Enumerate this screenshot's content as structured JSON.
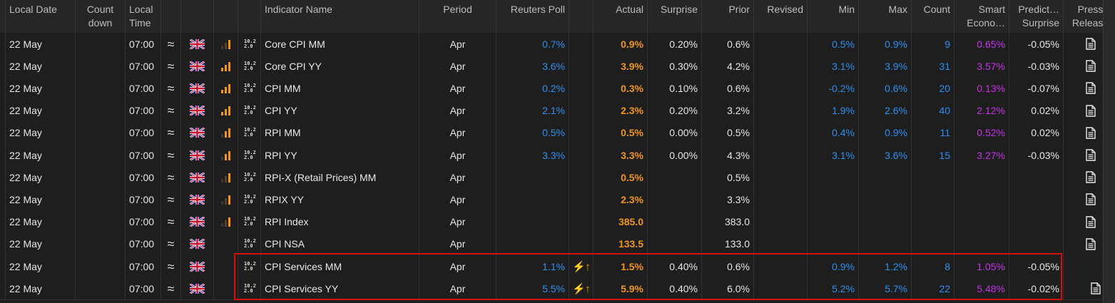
{
  "headers": {
    "local_date": "Local Date",
    "count_down": "Count down",
    "local_time": "Local Time",
    "indicator_name": "Indicator Name",
    "period": "Period",
    "reuters_poll": "Reuters Poll",
    "actual": "Actual",
    "surprise": "Surprise",
    "prior": "Prior",
    "revised": "Revised",
    "min": "Min",
    "max": "Max",
    "count": "Count",
    "smart_econ": "Smart Econo…",
    "predicted_surprise": "Predict… Surprise",
    "press_release": "Press Release"
  },
  "colors": {
    "poll": "#2d8ff0",
    "actual": "#f0951c",
    "smart": "#c533e6",
    "highlight_border": "#d40f0f"
  },
  "icons": {
    "frequency": "approx-tilde-icon",
    "country": "uk-flag-icon",
    "importance": "signal-bars-icon",
    "calc": "calculation-icon",
    "press": "document-icon",
    "surprise_alert": "lightning-up-arrow-icon"
  },
  "rows": [
    {
      "date": "22 May",
      "time": "07:00",
      "tilde": "≈",
      "calc_top": "10.2",
      "calc_bot": "2.0",
      "importance": 3,
      "lit": 1,
      "name": "Core CPI MM",
      "period": "Apr",
      "poll": "0.7%",
      "alert": "",
      "actual": "0.9%",
      "surprise": "0.20%",
      "prior": "0.6%",
      "revised": "",
      "min": "0.5%",
      "max": "0.9%",
      "count": "9",
      "smart": "0.65%",
      "pred": "-0.05%",
      "press": true
    },
    {
      "date": "22 May",
      "time": "07:00",
      "tilde": "≈",
      "calc_top": "10.2",
      "calc_bot": "2.0",
      "importance": 3,
      "lit": 3,
      "name": "Core CPI YY",
      "period": "Apr",
      "poll": "3.6%",
      "alert": "",
      "actual": "3.9%",
      "surprise": "0.30%",
      "prior": "4.2%",
      "revised": "",
      "min": "3.1%",
      "max": "3.9%",
      "count": "31",
      "smart": "3.57%",
      "pred": "-0.03%",
      "press": true
    },
    {
      "date": "22 May",
      "time": "07:00",
      "tilde": "≈",
      "calc_top": "10.2",
      "calc_bot": "2.0",
      "importance": 3,
      "lit": 3,
      "name": "CPI MM",
      "period": "Apr",
      "poll": "0.2%",
      "alert": "",
      "actual": "0.3%",
      "surprise": "0.10%",
      "prior": "0.6%",
      "revised": "",
      "min": "-0.2%",
      "max": "0.6%",
      "count": "20",
      "smart": "0.13%",
      "pred": "-0.07%",
      "press": true
    },
    {
      "date": "22 May",
      "time": "07:00",
      "tilde": "≈",
      "calc_top": "10.2",
      "calc_bot": "2.0",
      "importance": 3,
      "lit": 3,
      "name": "CPI YY",
      "period": "Apr",
      "poll": "2.1%",
      "alert": "",
      "actual": "2.3%",
      "surprise": "0.20%",
      "prior": "3.2%",
      "revised": "",
      "min": "1.9%",
      "max": "2.6%",
      "count": "40",
      "smart": "2.12%",
      "pred": "0.02%",
      "press": true
    },
    {
      "date": "22 May",
      "time": "07:00",
      "tilde": "≈",
      "calc_top": "10.2",
      "calc_bot": "2.0",
      "importance": 3,
      "lit": 2,
      "name": "RPI MM",
      "period": "Apr",
      "poll": "0.5%",
      "alert": "",
      "actual": "0.5%",
      "surprise": "0.00%",
      "prior": "0.5%",
      "revised": "",
      "min": "0.4%",
      "max": "0.9%",
      "count": "11",
      "smart": "0.52%",
      "pred": "0.02%",
      "press": true
    },
    {
      "date": "22 May",
      "time": "07:00",
      "tilde": "≈",
      "calc_top": "10.2",
      "calc_bot": "2.0",
      "importance": 3,
      "lit": 2,
      "name": "RPI YY",
      "period": "Apr",
      "poll": "3.3%",
      "alert": "",
      "actual": "3.3%",
      "surprise": "0.00%",
      "prior": "4.3%",
      "revised": "",
      "min": "3.1%",
      "max": "3.6%",
      "count": "15",
      "smart": "3.27%",
      "pred": "-0.03%",
      "press": true
    },
    {
      "date": "22 May",
      "time": "07:00",
      "tilde": "≈",
      "calc_top": "10.2",
      "calc_bot": "2.0",
      "importance": 3,
      "lit": 1,
      "name": "RPI-X (Retail Prices) MM",
      "period": "Apr",
      "poll": "",
      "alert": "",
      "actual": "0.5%",
      "surprise": "",
      "prior": "0.5%",
      "revised": "",
      "min": "",
      "max": "",
      "count": "",
      "smart": "",
      "pred": "",
      "press": true
    },
    {
      "date": "22 May",
      "time": "07:00",
      "tilde": "≈",
      "calc_top": "10.2",
      "calc_bot": "2.0",
      "importance": 3,
      "lit": 1,
      "name": "RPIX YY",
      "period": "Apr",
      "poll": "",
      "alert": "",
      "actual": "2.3%",
      "surprise": "",
      "prior": "3.3%",
      "revised": "",
      "min": "",
      "max": "",
      "count": "",
      "smart": "",
      "pred": "",
      "press": true
    },
    {
      "date": "22 May",
      "time": "07:00",
      "tilde": "≈",
      "calc_top": "10.2",
      "calc_bot": "2.0",
      "importance": 3,
      "lit": 1,
      "name": "RPI Index",
      "period": "Apr",
      "poll": "",
      "alert": "",
      "actual": "385.0",
      "surprise": "",
      "prior": "383.0",
      "revised": "",
      "min": "",
      "max": "",
      "count": "",
      "smart": "",
      "pred": "",
      "press": true
    },
    {
      "date": "22 May",
      "time": "07:00",
      "tilde": "≈",
      "calc_top": "10.2",
      "calc_bot": "2.0",
      "importance": 0,
      "lit": 0,
      "name": "CPI NSA",
      "period": "Apr",
      "poll": "",
      "alert": "",
      "actual": "133.5",
      "surprise": "",
      "prior": "133.0",
      "revised": "",
      "min": "",
      "max": "",
      "count": "",
      "smart": "",
      "pred": "",
      "press": true
    },
    {
      "date": "22 May",
      "time": "07:00",
      "tilde": "≈",
      "calc_top": "10.2",
      "calc_bot": "2.0",
      "importance": 0,
      "lit": 0,
      "name": "CPI Services MM",
      "period": "Apr",
      "poll": "1.1%",
      "alert": "⚡↑",
      "actual": "1.5%",
      "surprise": "0.40%",
      "prior": "0.6%",
      "revised": "",
      "min": "0.9%",
      "max": "1.2%",
      "count": "8",
      "smart": "1.05%",
      "pred": "-0.05%",
      "press": false
    },
    {
      "date": "22 May",
      "time": "07:00",
      "tilde": "≈",
      "calc_top": "10.2",
      "calc_bot": "2.0",
      "importance": 0,
      "lit": 0,
      "name": "CPI Services YY",
      "period": "Apr",
      "poll": "5.5%",
      "alert": "⚡↑",
      "actual": "5.9%",
      "surprise": "0.40%",
      "prior": "6.0%",
      "revised": "",
      "min": "5.2%",
      "max": "5.7%",
      "count": "22",
      "smart": "5.48%",
      "pred": "-0.02%",
      "press": true
    }
  ]
}
